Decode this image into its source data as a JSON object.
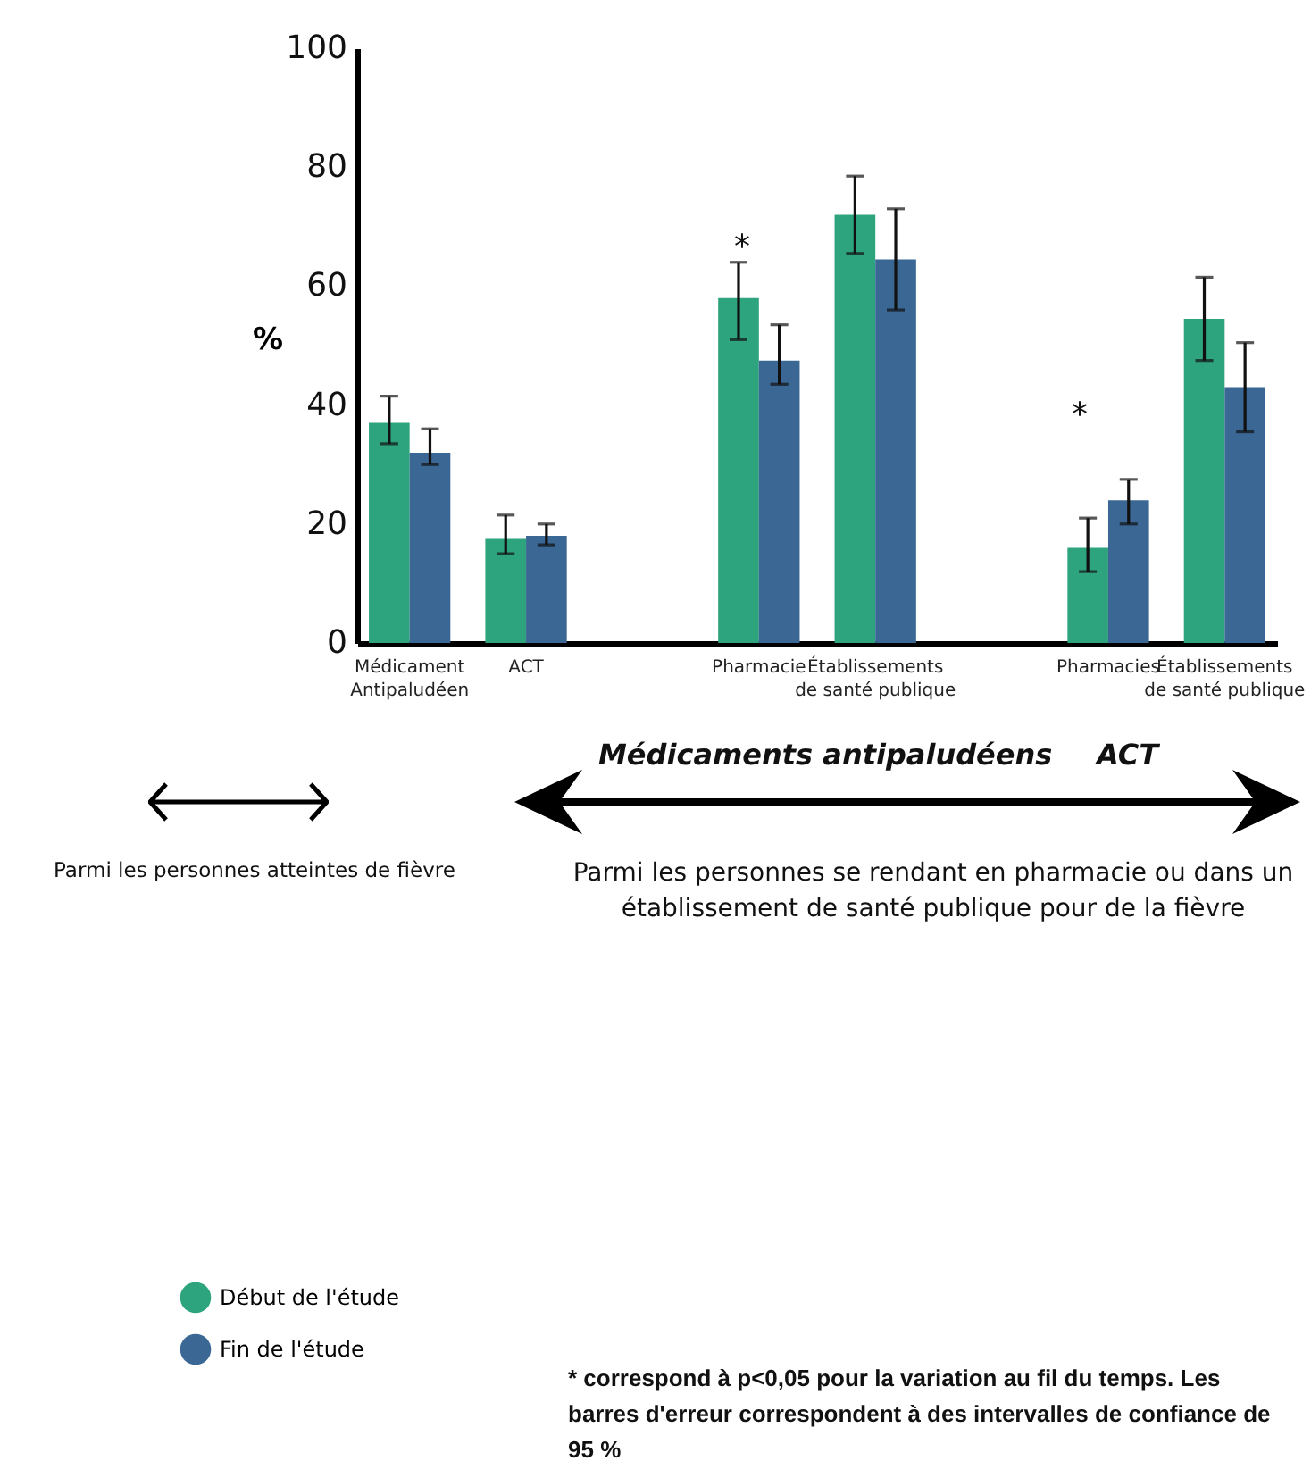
{
  "chart_data": {
    "type": "bar",
    "ylabel": "%",
    "categories": [
      "Médicament Antipaludéen",
      "ACT",
      null,
      "Pharmacie",
      "Établissements de santé publique",
      null,
      "Pharmacies",
      "Établissements de santé publique"
    ],
    "series": [
      {
        "name": "Début de l'étude",
        "color": "#2ea47e",
        "values": [
          37,
          17.5,
          null,
          58,
          72,
          null,
          16,
          54.5
        ],
        "errors": [
          [
            33.5,
            41.5
          ],
          [
            15,
            21.5
          ],
          null,
          [
            51,
            64
          ],
          [
            65.5,
            78.5
          ],
          null,
          [
            12,
            21
          ],
          [
            47.5,
            61.5
          ]
        ]
      },
      {
        "name": "Fin de l'étude",
        "color": "#3a6794",
        "values": [
          32,
          18,
          null,
          47.5,
          64.5,
          null,
          24,
          43
        ],
        "errors": [
          [
            30,
            36
          ],
          [
            16.5,
            20
          ],
          null,
          [
            43.5,
            53.5
          ],
          [
            56,
            73
          ],
          null,
          [
            20,
            27.5
          ],
          [
            35.5,
            50.5
          ]
        ]
      }
    ],
    "ylim": [
      0,
      100
    ],
    "yticks": [
      0,
      20,
      40,
      60,
      80,
      100
    ],
    "grid": false,
    "legend": "bottom left",
    "annotations": [
      "Médicaments antipaludéens",
      "ACT",
      "Parmi les personnes atteintes de fièvre",
      "Parmi les personnes se rendant en pharmacie  ou dans un établissement de santé publique pour de la fièvre",
      "* correspond à p<0,05 pour la variation au fil du temps. Les barres d'erreur correspondent à des intervalles de confiance de 95 %",
      "*",
      "*"
    ]
  }
}
